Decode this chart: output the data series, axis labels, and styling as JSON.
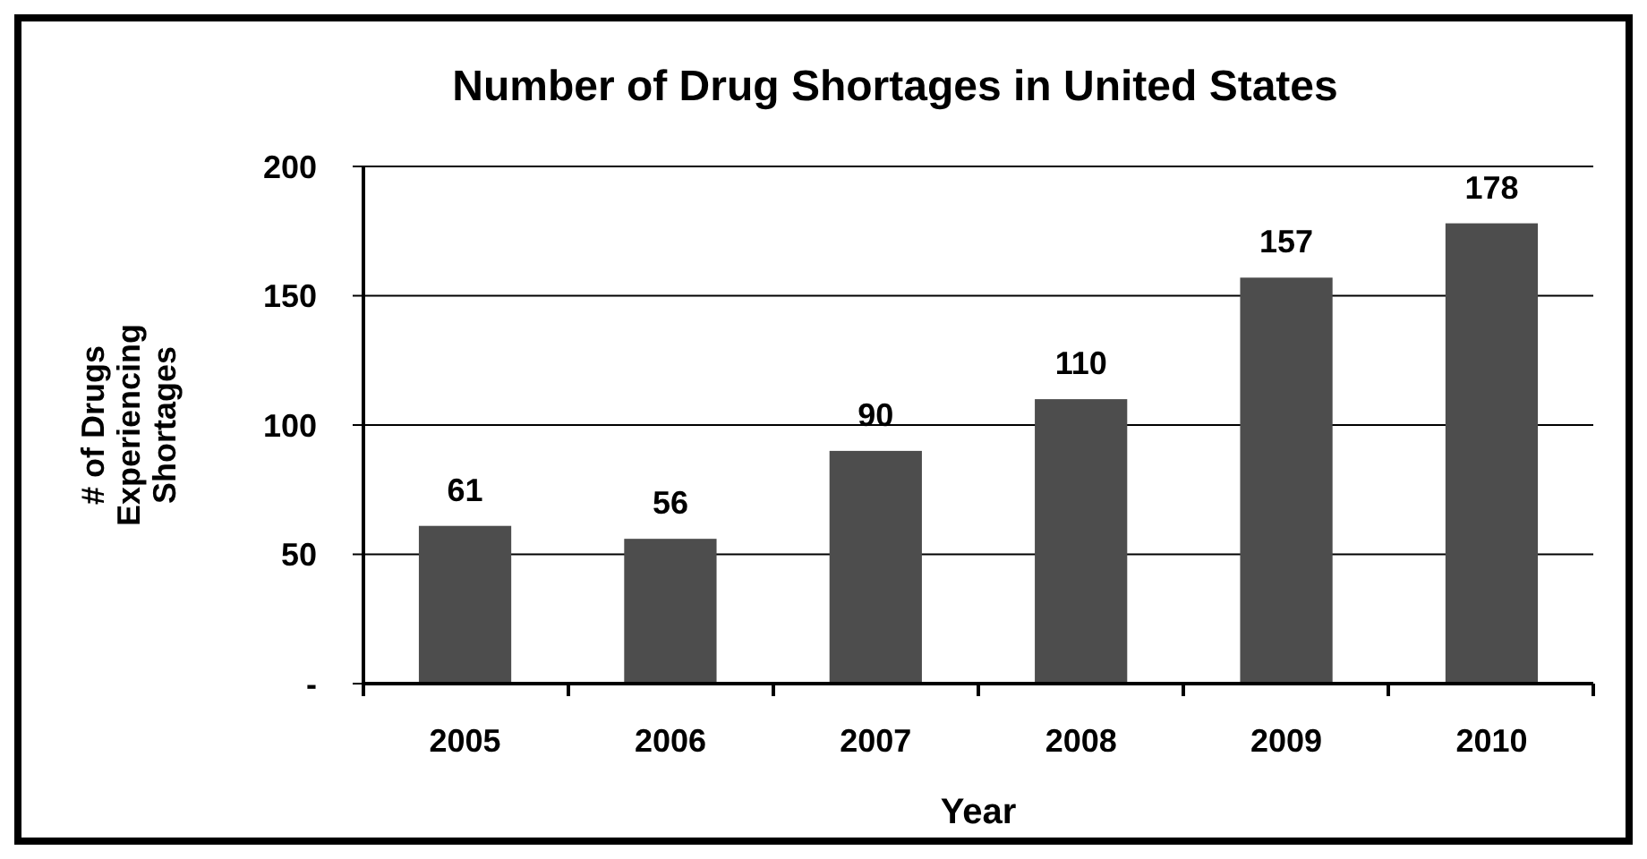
{
  "chart_data": {
    "type": "bar",
    "title": "Number of Drug Shortages in United States",
    "xlabel": "Year",
    "ylabel": "# of Drugs Experiencing Shortages",
    "categories": [
      "2005",
      "2006",
      "2007",
      "2008",
      "2009",
      "2010"
    ],
    "values": [
      61,
      56,
      90,
      110,
      157,
      178
    ],
    "color": "#4d4d4d",
    "ylim": [
      0,
      200
    ],
    "yticks": [
      {
        "value": 0,
        "label": "-"
      },
      50,
      100,
      150,
      200
    ],
    "grid": "y",
    "data_labels": true
  }
}
